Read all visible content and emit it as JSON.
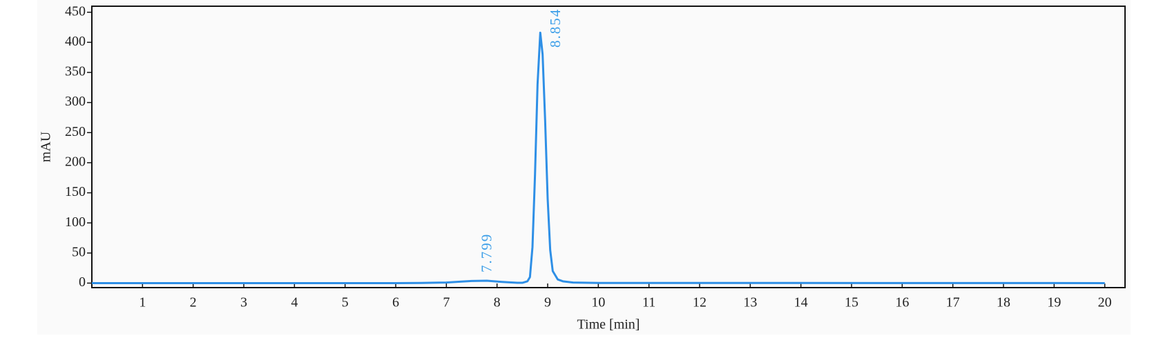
{
  "chart_data": {
    "type": "line",
    "xlabel": "Time [min]",
    "ylabel": "mAU",
    "x": [
      0,
      6,
      6.5,
      7,
      7.3,
      7.5,
      7.8,
      8.1,
      8.4,
      8.5,
      8.6,
      8.65,
      8.7,
      8.75,
      8.8,
      8.854,
      8.9,
      8.95,
      9.0,
      9.05,
      9.1,
      9.2,
      9.3,
      9.5,
      10,
      20
    ],
    "series": [
      {
        "color": "#2e8fe6",
        "values": [
          0,
          0,
          0.3,
          1,
          2.5,
          3.5,
          4,
          2,
          0.5,
          0.5,
          3,
          10,
          60,
          180,
          330,
          416,
          380,
          270,
          140,
          55,
          20,
          6,
          3,
          1,
          0.3,
          0
        ]
      }
    ],
    "peak_labels": [
      7.799,
      8.854
    ],
    "peak_label_color": "#3b9ee8",
    "xlim": [
      0,
      20.4
    ],
    "ylim": [
      -7.5,
      460
    ],
    "xticks": [
      1,
      2,
      3,
      4,
      5,
      6,
      7,
      8,
      9,
      10,
      11,
      12,
      13,
      14,
      15,
      16,
      17,
      18,
      19,
      20
    ],
    "yticks": [
      0,
      50,
      100,
      150,
      200,
      250,
      300,
      350,
      400,
      450
    ]
  }
}
